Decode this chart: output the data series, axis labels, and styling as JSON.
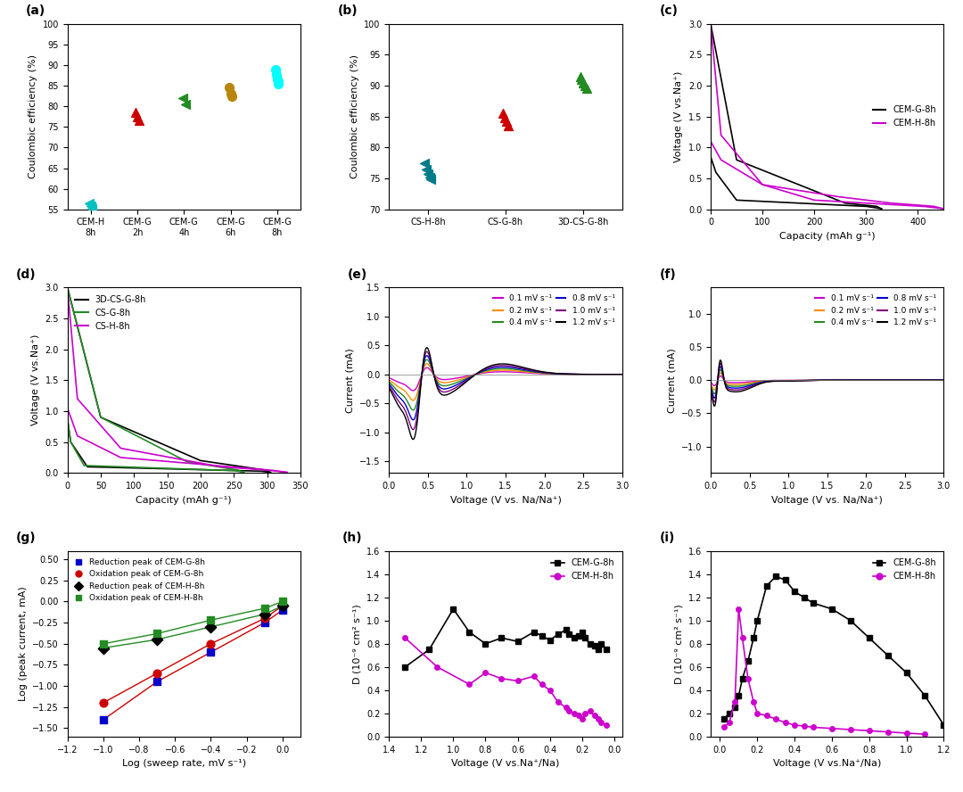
{
  "panel_a": {
    "categories": [
      "CEM-H\n8h",
      "CEM-G\n2h",
      "CEM-G\n4h",
      "CEM-G\n6h",
      "CEM-G\n8h"
    ],
    "data": [
      [
        56.5,
        55.8,
        55.2
      ],
      [
        78.5,
        77.5,
        76.5
      ],
      [
        82.0,
        80.5
      ],
      [
        84.5,
        83.0,
        82.5
      ],
      [
        89.0,
        87.5,
        86.5,
        86.0,
        85.5
      ]
    ],
    "colors": [
      "#00BFBF",
      "#CC0000",
      "#228B22",
      "#B8860B",
      "#00FFFF"
    ],
    "markers": [
      "<",
      "^",
      "<",
      "o",
      "o"
    ],
    "ylabel": "Coulombic efficiency (%)",
    "ylim": [
      55,
      100
    ]
  },
  "panel_b": {
    "categories": [
      "CS-H-8h",
      "CS-G-8h",
      "3D-CS-G-8h"
    ],
    "data": [
      [
        77.5,
        76.5,
        75.8,
        75.2,
        74.8
      ],
      [
        85.5,
        84.8,
        84.2,
        83.5
      ],
      [
        91.5,
        91.0,
        90.5,
        90.0,
        89.5
      ]
    ],
    "colors": [
      "#007B8A",
      "#CC0000",
      "#228B22"
    ],
    "markers": [
      "<",
      "^",
      "^"
    ],
    "ylabel": "Coulombic efficiency (%)",
    "ylim": [
      70,
      100
    ]
  },
  "panel_c": {
    "ylabel": "Voltage (V vs.Na⁺)",
    "xlabel": "Capacity (mAh g⁻¹)",
    "ylim": [
      0,
      3.0
    ],
    "xlim": [
      0,
      450
    ],
    "legend": [
      "CEM-G-8h",
      "CEM-H-8h"
    ],
    "colors": [
      "#000000",
      "#CC00CC"
    ]
  },
  "panel_d": {
    "ylabel": "Voltage (V vs.Na⁺)",
    "xlabel": "Capacity (mAh g⁻¹)",
    "ylim": [
      0,
      3.0
    ],
    "xlim": [
      0,
      350
    ],
    "legend": [
      "3D-CS-G-8h",
      "CS-G-8h",
      "CS-H-8h"
    ],
    "colors": [
      "#000000",
      "#228B22",
      "#CC00CC"
    ]
  },
  "panel_e": {
    "ylabel": "Current (mA)",
    "xlabel": "Voltage (V vs. Na/Na⁺)",
    "ylim": [
      -1.7,
      1.5
    ],
    "xlim": [
      0,
      3.0
    ],
    "legend": [
      "0.1 mV s⁻¹",
      "0.2 mV s⁻¹",
      "0.4 mV s⁻¹",
      "0.8 mV s⁻¹",
      "1.0 mV s⁻¹",
      "1.2 mV s⁻¹"
    ],
    "colors": [
      "#CC00CC",
      "#FF8C00",
      "#228B22",
      "#0000CD",
      "#800080",
      "#000000"
    ]
  },
  "panel_f": {
    "ylabel": "Current (mA)",
    "xlabel": "Voltage (V vs. Na/Na⁺)",
    "ylim": [
      -1.4,
      1.4
    ],
    "xlim": [
      0,
      3.0
    ],
    "legend": [
      "0.1 mV s⁻¹",
      "0.2 mV s⁻¹",
      "0.4 mV s⁻¹",
      "0.8 mV s⁻¹",
      "1.0 mV s⁻¹",
      "1.2 mV s⁻¹"
    ],
    "colors": [
      "#CC00CC",
      "#FF8C00",
      "#228B22",
      "#0000CD",
      "#800080",
      "#000000"
    ]
  },
  "panel_g": {
    "ylabel": "Log (peak current, mA)",
    "xlabel": "Log (sweep rate, mV s⁻¹)",
    "xlim": [
      -1.2,
      0.1
    ],
    "ylim": [
      -1.6,
      0.6
    ],
    "legend": [
      "Reduction peak of CEM-G-8h",
      "Oxidation peak of CEM-G-8h",
      "Reduction peak of CEM-H-8h",
      "Oxidation peak of CEM-H-8h"
    ],
    "colors": [
      "#0000CD",
      "#CC0000",
      "#000000",
      "#228B22"
    ],
    "markers": [
      "s",
      "o",
      "D",
      "s"
    ]
  },
  "panel_h": {
    "ylabel": "D (10⁻⁹ cm² s⁻¹)",
    "xlabel": "Voltage (V vs.Na⁺/Na)",
    "xlim": [
      1.4,
      -0.05
    ],
    "ylim": [
      0,
      1.6
    ],
    "legend": [
      "CEM-G-8h",
      "CEM-H-8h"
    ],
    "colors": [
      "#000000",
      "#CC00CC"
    ]
  },
  "panel_i": {
    "ylabel": "D (10⁻⁹ cm² s⁻¹)",
    "xlabel": "Voltage (V vs.Na⁺/Na)",
    "xlim": [
      -0.05,
      1.2
    ],
    "ylim": [
      0,
      1.6
    ],
    "legend": [
      "CEM-G-8h",
      "CEM-H-8h"
    ],
    "colors": [
      "#000000",
      "#CC00CC"
    ]
  }
}
